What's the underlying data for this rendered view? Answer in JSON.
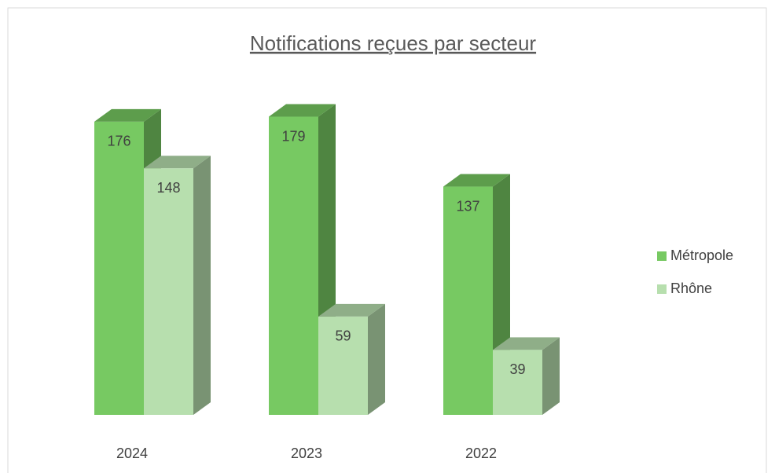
{
  "chart_data": {
    "type": "bar3d",
    "title": "Notifications reçues par secteur",
    "categories": [
      "2024",
      "2023",
      "2022"
    ],
    "series": [
      {
        "name": "Métropole",
        "color": "#77c962",
        "values": [
          176,
          179,
          137
        ]
      },
      {
        "name": "Rhône",
        "color": "#b7dfae",
        "values": [
          148,
          59,
          39
        ]
      }
    ],
    "legend": "right"
  }
}
